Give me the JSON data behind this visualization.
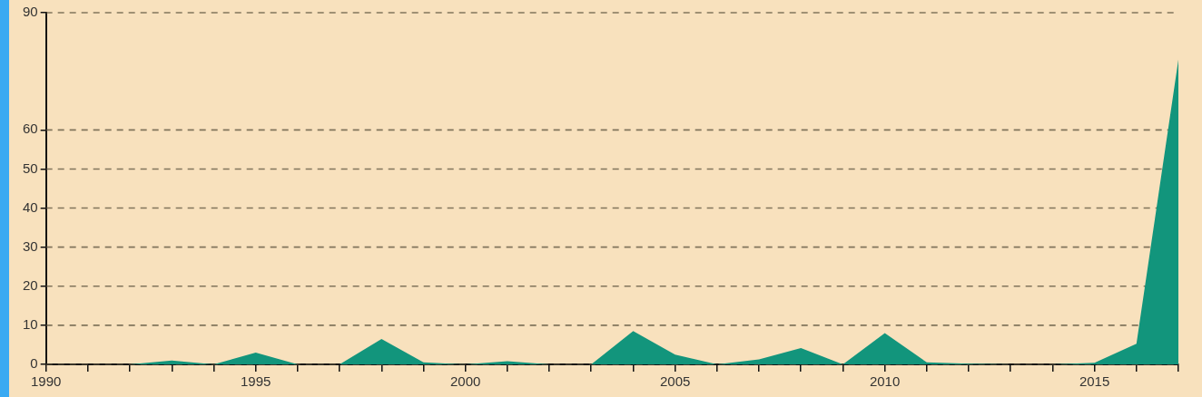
{
  "chart_data": {
    "type": "area",
    "x": [
      1990,
      1991,
      1992,
      1993,
      1994,
      1995,
      1996,
      1997,
      1998,
      1999,
      2000,
      2001,
      2002,
      2003,
      2004,
      2005,
      2006,
      2007,
      2008,
      2009,
      2010,
      2011,
      2012,
      2013,
      2014,
      2015,
      2016,
      2017
    ],
    "series": [
      {
        "color": "#12957c",
        "values": [
          0,
          0,
          0,
          1,
          0,
          3,
          0,
          0,
          6.5,
          0.5,
          0,
          0.8,
          0,
          0,
          8.5,
          2.5,
          0,
          1.3,
          4.2,
          0,
          8,
          0.5,
          0.2,
          0,
          0,
          0.4,
          5.3,
          78
        ]
      }
    ],
    "xlim": [
      1990,
      2017
    ],
    "xticks": [
      1990,
      {
        "value": 1991,
        "label": null
      },
      {
        "value": 1992,
        "label": null
      },
      {
        "value": 1993,
        "label": null
      },
      {
        "value": 1994,
        "label": null
      },
      1995,
      {
        "value": 1996,
        "label": null
      },
      {
        "value": 1997,
        "label": null
      },
      {
        "value": 1998,
        "label": null
      },
      {
        "value": 1999,
        "label": null
      },
      2000,
      {
        "value": 2001,
        "label": null
      },
      {
        "value": 2002,
        "label": null
      },
      {
        "value": 2003,
        "label": null
      },
      {
        "value": 2004,
        "label": null
      },
      2005,
      {
        "value": 2006,
        "label": null
      },
      {
        "value": 2007,
        "label": null
      },
      {
        "value": 2008,
        "label": null
      },
      {
        "value": 2009,
        "label": null
      },
      2010,
      {
        "value": 2011,
        "label": null
      },
      {
        "value": 2012,
        "label": null
      },
      {
        "value": 2013,
        "label": null
      },
      {
        "value": 2014,
        "label": null
      },
      2015,
      {
        "value": 2016,
        "label": null
      },
      {
        "value": 2017,
        "label": null
      }
    ],
    "ylim": [
      0,
      90
    ],
    "yticks": [
      0,
      10,
      20,
      30,
      40,
      50,
      60,
      90
    ],
    "grid": "y",
    "legend": false,
    "marker": "none"
  }
}
